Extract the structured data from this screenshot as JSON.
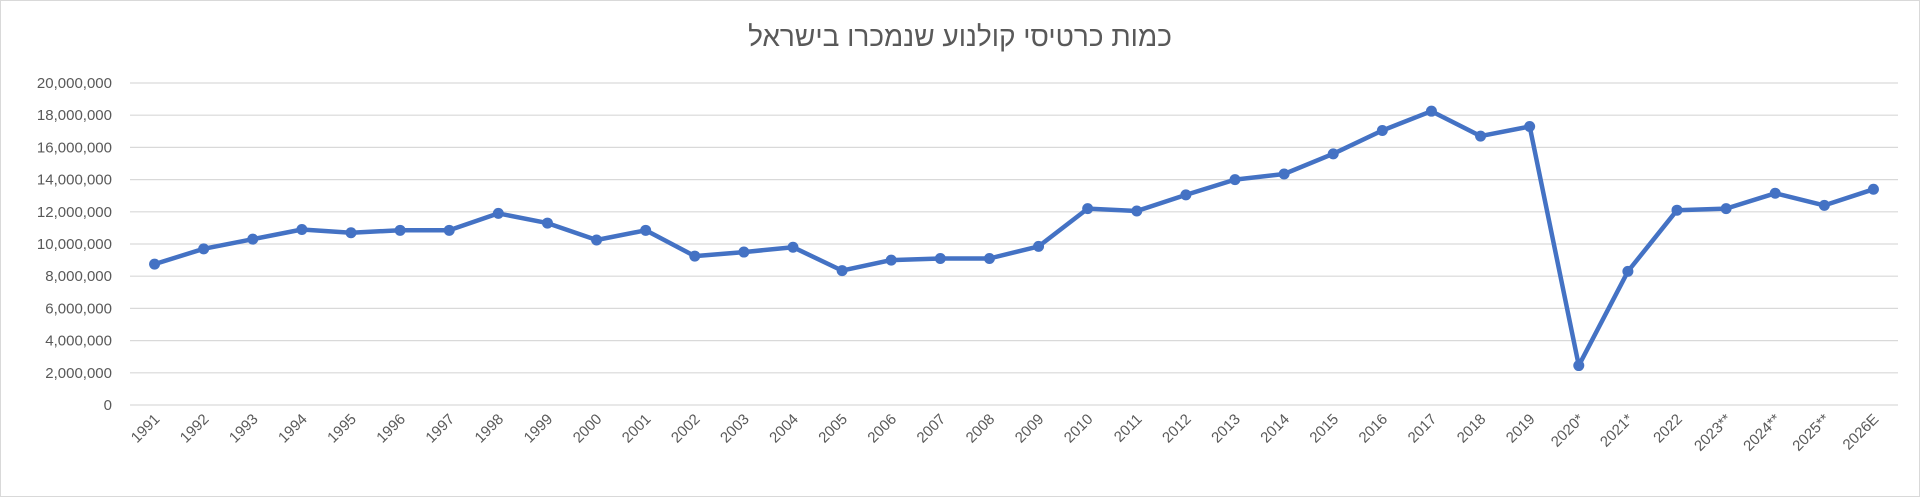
{
  "chart_data": {
    "type": "line",
    "title": "כמות כרטיסי קולנוע שנמכרו בישראל",
    "xlabel": "",
    "ylabel": "",
    "ylim": [
      0,
      20000000
    ],
    "yticks": [
      0,
      2000000,
      4000000,
      6000000,
      8000000,
      10000000,
      12000000,
      14000000,
      16000000,
      18000000,
      20000000
    ],
    "ytick_labels": [
      "0",
      "2,000,000",
      "4,000,000",
      "6,000,000",
      "8,000,000",
      "10,000,000",
      "12,000,000",
      "14,000,000",
      "16,000,000",
      "18,000,000",
      "20,000,000"
    ],
    "grid": true,
    "legend": "none",
    "color": "#4472c4",
    "categories": [
      "1991",
      "1992",
      "1993",
      "1994",
      "1995",
      "1996",
      "1997",
      "1998",
      "1999",
      "2000",
      "2001",
      "2002",
      "2003",
      "2004",
      "2005",
      "2006",
      "2007",
      "2008",
      "2009",
      "2010",
      "2011",
      "2012",
      "2013",
      "2014",
      "2015",
      "2016",
      "2017",
      "2018",
      "2019",
      "2020*",
      "2021*",
      "2022",
      "2023**",
      "2024**",
      "2025**",
      "2026E"
    ],
    "values": [
      8750000,
      9700000,
      10300000,
      10900000,
      10700000,
      10850000,
      10850000,
      11900000,
      11300000,
      10250000,
      10850000,
      9250000,
      9500000,
      9800000,
      8350000,
      9000000,
      9100000,
      9100000,
      9850000,
      12200000,
      12050000,
      13050000,
      14000000,
      14350000,
      15600000,
      17050000,
      18250000,
      16700000,
      17300000,
      2450000,
      8300000,
      12100000,
      12200000,
      13150000,
      12400000,
      13400000
    ]
  }
}
